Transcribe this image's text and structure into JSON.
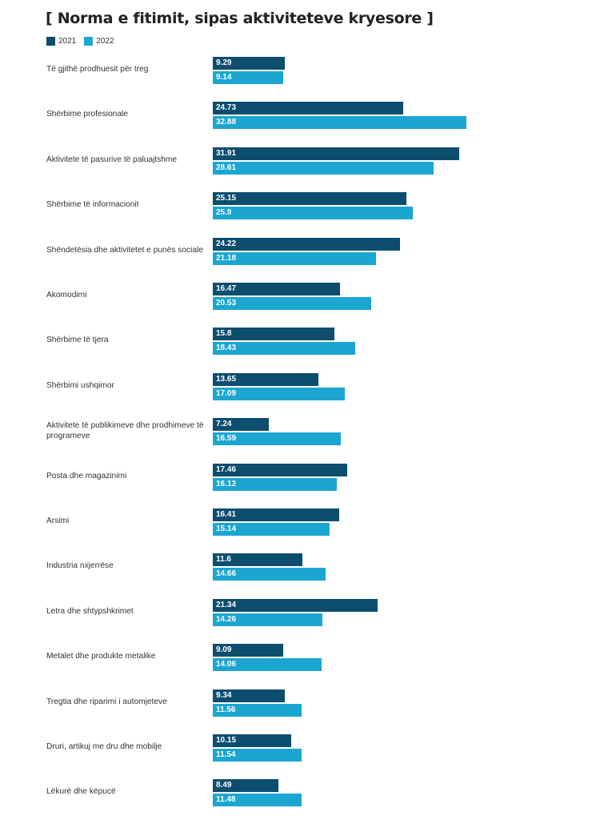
{
  "chart_data": {
    "type": "bar",
    "orientation": "horizontal",
    "title": "[ Norma e fitimit, sipas aktiviteteve kryesore ]",
    "legend_position": "top-left",
    "colors": {
      "2021": "#0d4d6e",
      "2022": "#1ba6d1"
    },
    "series": [
      {
        "name": "2021",
        "values": [
          9.29,
          24.73,
          31.91,
          25.15,
          24.22,
          16.47,
          15.8,
          13.65,
          7.24,
          17.46,
          16.41,
          11.6,
          21.34,
          9.09,
          9.34,
          10.15,
          8.49
        ]
      },
      {
        "name": "2022",
        "values": [
          9.14,
          32.88,
          28.61,
          25.9,
          21.18,
          20.53,
          18.43,
          17.09,
          16.59,
          16.12,
          15.14,
          14.66,
          14.26,
          14.06,
          11.56,
          11.54,
          11.48
        ]
      }
    ],
    "categories": [
      "Të gjithë prodhuesit për treg",
      "Shërbime profesionale",
      "Aktivitete të pasurive të paluajtshme",
      "Shërbime të informacionit",
      "Shëndetësia dhe aktivitetet e punës sociale",
      "Akomodimi",
      "Shërbime të tjera",
      "Shërbimi ushqimor",
      "Aktivitete të publikimeve dhe prodhimeve të programeve",
      "Posta dhe magazinimi",
      "Arsimi",
      "Industria nxjerrëse",
      "Letra dhe shtypshkrimet",
      "Metalet dhe produkte metalike",
      "Tregtia dhe riparimi i automjeteve",
      "Druri, artikuj me dru dhe mobilje",
      "Lëkurë dhe këpucë"
    ]
  }
}
